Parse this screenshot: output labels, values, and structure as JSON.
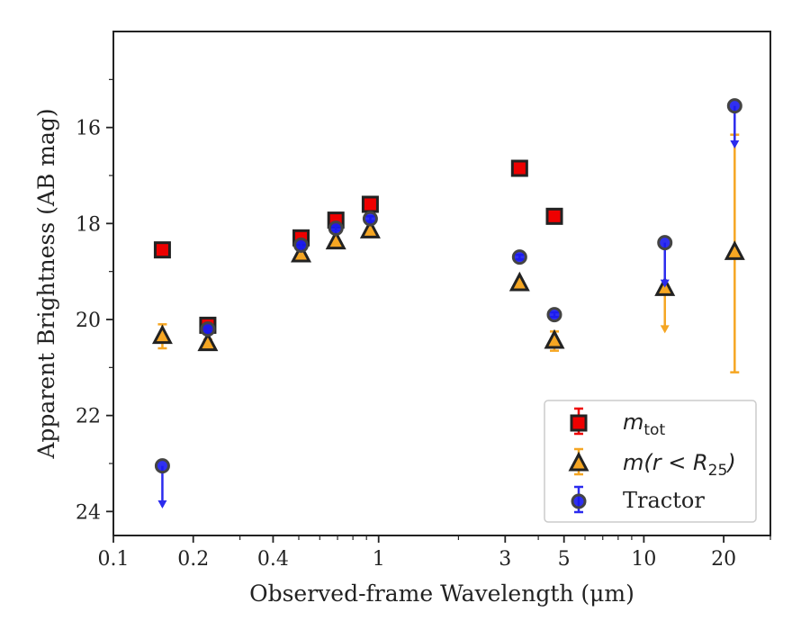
{
  "chart_data": {
    "type": "scatter",
    "xlabel": "Observed-frame Wavelength (μm)",
    "ylabel": "Apparent Brightness (AB mag)",
    "xscale": "log",
    "xlim": [
      0.1,
      30
    ],
    "ylim": [
      24.5,
      14.0
    ],
    "y_inverted": true,
    "x_ticks": [
      0.1,
      0.2,
      0.4,
      1,
      3,
      5,
      10,
      20
    ],
    "x_tick_labels": [
      "0.1",
      "0.2",
      "0.4",
      "1",
      "3",
      "5",
      "10",
      "20"
    ],
    "y_ticks": [
      16,
      18,
      20,
      22,
      24
    ],
    "y_tick_labels": [
      "16",
      "18",
      "20",
      "22",
      "24"
    ],
    "grid": false,
    "legend_position": "lower-right",
    "series": [
      {
        "name": "m_tot",
        "legend_label": {
          "base": "m",
          "sub": "tot"
        },
        "marker": "square",
        "color": "#ee0000",
        "edge": "#222222",
        "points": [
          {
            "x": 0.153,
            "y": 18.55,
            "err": 0.05
          },
          {
            "x": 0.227,
            "y": 20.12,
            "err": 0.08
          },
          {
            "x": 0.51,
            "y": 18.3,
            "err": 0.05
          },
          {
            "x": 0.69,
            "y": 17.93,
            "err": 0.05
          },
          {
            "x": 0.93,
            "y": 17.6,
            "err": 0.05
          },
          {
            "x": 3.4,
            "y": 16.85,
            "err": 0.04
          },
          {
            "x": 4.6,
            "y": 17.85,
            "err": 0.05
          }
        ]
      },
      {
        "name": "m(r < R25)",
        "legend_label": {
          "prefix": "m(r < ",
          "base": "R",
          "sub": "25",
          "suffix": ")"
        },
        "marker": "triangle",
        "color": "#f5a623",
        "edge": "#222222",
        "points": [
          {
            "x": 0.153,
            "y": 20.35,
            "err": 0.25
          },
          {
            "x": 0.227,
            "y": 20.5,
            "err": 0.08
          },
          {
            "x": 0.51,
            "y": 18.65,
            "err": 0.05
          },
          {
            "x": 0.69,
            "y": 18.38,
            "err": 0.05
          },
          {
            "x": 0.93,
            "y": 18.15,
            "err": 0.05
          },
          {
            "x": 3.4,
            "y": 19.25,
            "err": 0.05
          },
          {
            "x": 4.6,
            "y": 20.45,
            "err": 0.2
          },
          {
            "x": 12.0,
            "y": 19.35,
            "upper_limit_to": 20.25
          },
          {
            "x": 22.0,
            "y": 18.6,
            "err_low": 2.45,
            "err_high": 2.5
          }
        ]
      },
      {
        "name": "Tractor",
        "legend_label": {
          "base": "Tractor"
        },
        "marker": "circle",
        "color": "#1a1aee",
        "edge": "#444444",
        "points": [
          {
            "x": 0.153,
            "y": 23.05,
            "upper_limit_to": 23.9
          },
          {
            "x": 0.227,
            "y": 20.2,
            "err": 0.05
          },
          {
            "x": 0.51,
            "y": 18.45,
            "err": 0.05
          },
          {
            "x": 0.69,
            "y": 18.1,
            "err": 0.05
          },
          {
            "x": 0.93,
            "y": 17.9,
            "err": 0.05
          },
          {
            "x": 3.4,
            "y": 18.7,
            "err": 0.05
          },
          {
            "x": 4.6,
            "y": 19.9,
            "err": 0.05
          },
          {
            "x": 12.0,
            "y": 18.4,
            "upper_limit_to": 19.3
          },
          {
            "x": 22.0,
            "y": 15.55,
            "upper_limit_to": 16.4
          }
        ]
      }
    ]
  }
}
